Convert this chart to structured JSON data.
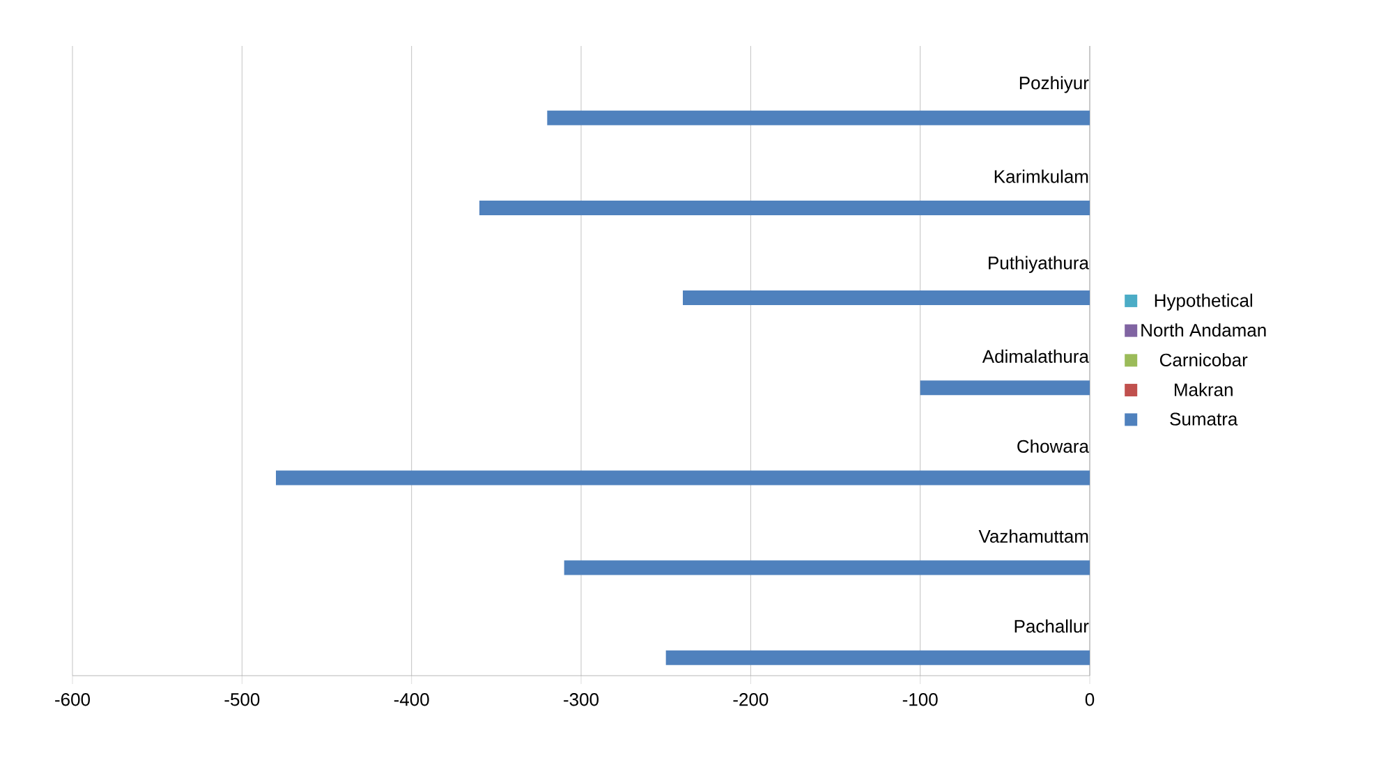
{
  "chart_data": {
    "type": "bar",
    "orientation": "horizontal",
    "categories": [
      "Pozhiyur",
      "Karimkulam",
      "Puthiyathura",
      "Adimalathura",
      "Chowara",
      "Vazhamuttam",
      "Pachallur"
    ],
    "series": [
      {
        "name": "Sumatra",
        "color": "#4f81bd",
        "values": [
          -320,
          -360,
          -240,
          -100,
          -480,
          -310,
          -250
        ]
      },
      {
        "name": "Makran",
        "color": "#c0504d",
        "values": [
          0,
          0,
          0,
          0,
          0,
          0,
          0
        ]
      },
      {
        "name": "Carnicobar",
        "color": "#9bbb59",
        "values": [
          0,
          0,
          0,
          0,
          0,
          0,
          0
        ]
      },
      {
        "name": "North Andaman",
        "color": "#8064a2",
        "values": [
          0,
          0,
          0,
          0,
          0,
          0,
          0
        ]
      },
      {
        "name": "Hypothetical",
        "color": "#4bacc6",
        "values": [
          0,
          0,
          0,
          0,
          0,
          0,
          0
        ]
      }
    ],
    "xlim": [
      -600,
      0
    ],
    "xticks": [
      -600,
      -500,
      -400,
      -300,
      -200,
      -100,
      0
    ],
    "grid": "x",
    "legend": "right"
  }
}
